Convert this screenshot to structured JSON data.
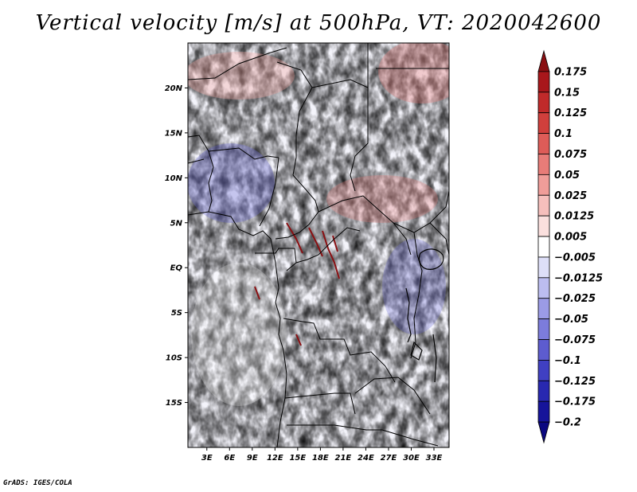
{
  "title": "Vertical velocity [m/s] at 500hPa, VT: 2020042600",
  "credit": "GrADS: IGES/COLA",
  "map": {
    "lat_labels": [
      "20N",
      "15N",
      "10N",
      "5N",
      "EQ",
      "5S",
      "10S",
      "15S"
    ],
    "lat_values": [
      20,
      15,
      10,
      5,
      0,
      -5,
      -10,
      -15
    ],
    "lon_labels": [
      "3E",
      "6E",
      "9E",
      "12E",
      "15E",
      "18E",
      "21E",
      "24E",
      "27E",
      "30E",
      "33E"
    ],
    "lon_values": [
      3,
      6,
      9,
      12,
      15,
      18,
      21,
      24,
      27,
      30,
      33
    ],
    "lon_range": [
      0.5,
      35
    ],
    "lat_range": [
      -20,
      25
    ]
  },
  "colorbar": {
    "labels": [
      "0.175",
      "0.15",
      "0.125",
      "0.1",
      "0.075",
      "0.05",
      "0.025",
      "0.0125",
      "0.005",
      "−0.005",
      "−0.0125",
      "−0.025",
      "−0.05",
      "−0.075",
      "−0.1",
      "−0.125",
      "−0.175",
      "−0.2"
    ],
    "colors": [
      "#8a0f12",
      "#a8171b",
      "#c02a2a",
      "#d03f3c",
      "#de5c58",
      "#e87c78",
      "#f09d99",
      "#f6bfbc",
      "#fbe0de",
      "#ffffff",
      "#dedff8",
      "#bcbdf0",
      "#9b9be6",
      "#7c7cdc",
      "#5d5ccf",
      "#4040c2",
      "#2828b0",
      "#16149a",
      "#0b0880"
    ]
  }
}
